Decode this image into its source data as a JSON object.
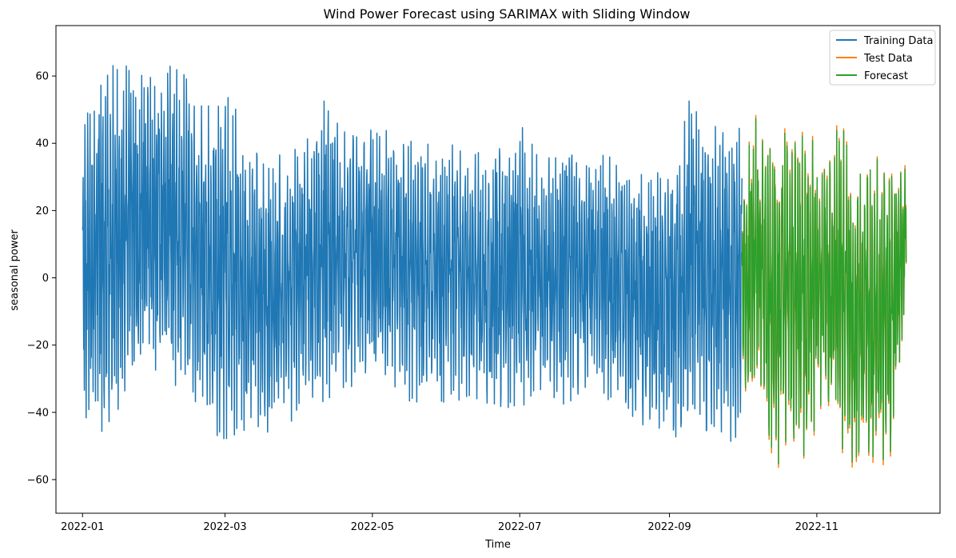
{
  "chart_data": {
    "type": "line",
    "title": "Wind Power Forecast using SARIMAX with Sliding Window",
    "xlabel": "Time",
    "ylabel": "seasonal power",
    "xlim": [
      "2021-12-21",
      "2022-12-22"
    ],
    "ylim": [
      -70,
      75
    ],
    "x_ticks": [
      "2022-01",
      "2022-03",
      "2022-05",
      "2022-07",
      "2022-09",
      "2022-11"
    ],
    "y_ticks": [
      -60,
      -40,
      -20,
      0,
      20,
      40,
      60
    ],
    "grid": false,
    "legend_position": "top-right",
    "series": [
      {
        "name": "Training Data",
        "color": "#1f77b4",
        "x_range": [
          "2022-01-01",
          "2022-10-01"
        ],
        "envelope_dates": [
          "2022-01-01",
          "2022-01-10",
          "2022-01-20",
          "2022-02-01",
          "2022-02-10",
          "2022-02-20",
          "2022-03-01",
          "2022-03-10",
          "2022-03-20",
          "2022-04-01",
          "2022-04-10",
          "2022-04-20",
          "2022-05-01",
          "2022-05-10",
          "2022-05-20",
          "2022-06-01",
          "2022-06-10",
          "2022-06-20",
          "2022-07-01",
          "2022-07-10",
          "2022-07-20",
          "2022-08-01",
          "2022-08-10",
          "2022-08-20",
          "2022-09-01",
          "2022-09-10",
          "2022-09-20",
          "2022-10-01"
        ],
        "envelope_high": [
          45,
          62,
          68,
          60,
          65,
          50,
          55,
          45,
          35,
          40,
          54,
          45,
          47,
          42,
          40,
          40,
          38,
          36,
          46,
          35,
          45,
          38,
          35,
          33,
          30,
          55,
          45,
          48
        ],
        "envelope_low": [
          -43,
          -46,
          -34,
          -28,
          -35,
          -45,
          -48,
          -45,
          -46,
          -43,
          -37,
          -33,
          -30,
          -36,
          -37,
          -38,
          -35,
          -38,
          -39,
          -33,
          -38,
          -30,
          -40,
          -44,
          -47,
          -48,
          -44,
          -52
        ]
      },
      {
        "name": "Test Data",
        "color": "#ff7f0e",
        "x_range": [
          "2022-10-01",
          "2022-12-08"
        ],
        "envelope_dates": [
          "2022-10-01",
          "2022-10-07",
          "2022-10-14",
          "2022-10-21",
          "2022-10-28",
          "2022-11-04",
          "2022-11-11",
          "2022-11-18",
          "2022-11-25",
          "2022-12-01",
          "2022-12-08"
        ],
        "envelope_high": [
          30,
          52,
          45,
          44,
          43,
          40,
          47,
          30,
          36,
          36,
          34
        ],
        "envelope_low": [
          -47,
          -30,
          -60,
          -48,
          -55,
          -35,
          -53,
          -58,
          -55,
          -63,
          -8
        ]
      },
      {
        "name": "Forecast",
        "color": "#2ca02c",
        "x_range": [
          "2022-10-01",
          "2022-12-08"
        ],
        "envelope_dates": [
          "2022-10-01",
          "2022-10-07",
          "2022-10-14",
          "2022-10-21",
          "2022-10-28",
          "2022-11-04",
          "2022-11-11",
          "2022-11-18",
          "2022-11-25",
          "2022-12-01",
          "2022-12-08"
        ],
        "envelope_high": [
          29,
          51,
          44,
          43,
          42,
          39,
          46,
          29,
          35,
          35,
          33
        ],
        "envelope_low": [
          -46,
          -29,
          -59,
          -47,
          -54,
          -34,
          -52,
          -57,
          -54,
          -62,
          -7
        ]
      }
    ]
  }
}
